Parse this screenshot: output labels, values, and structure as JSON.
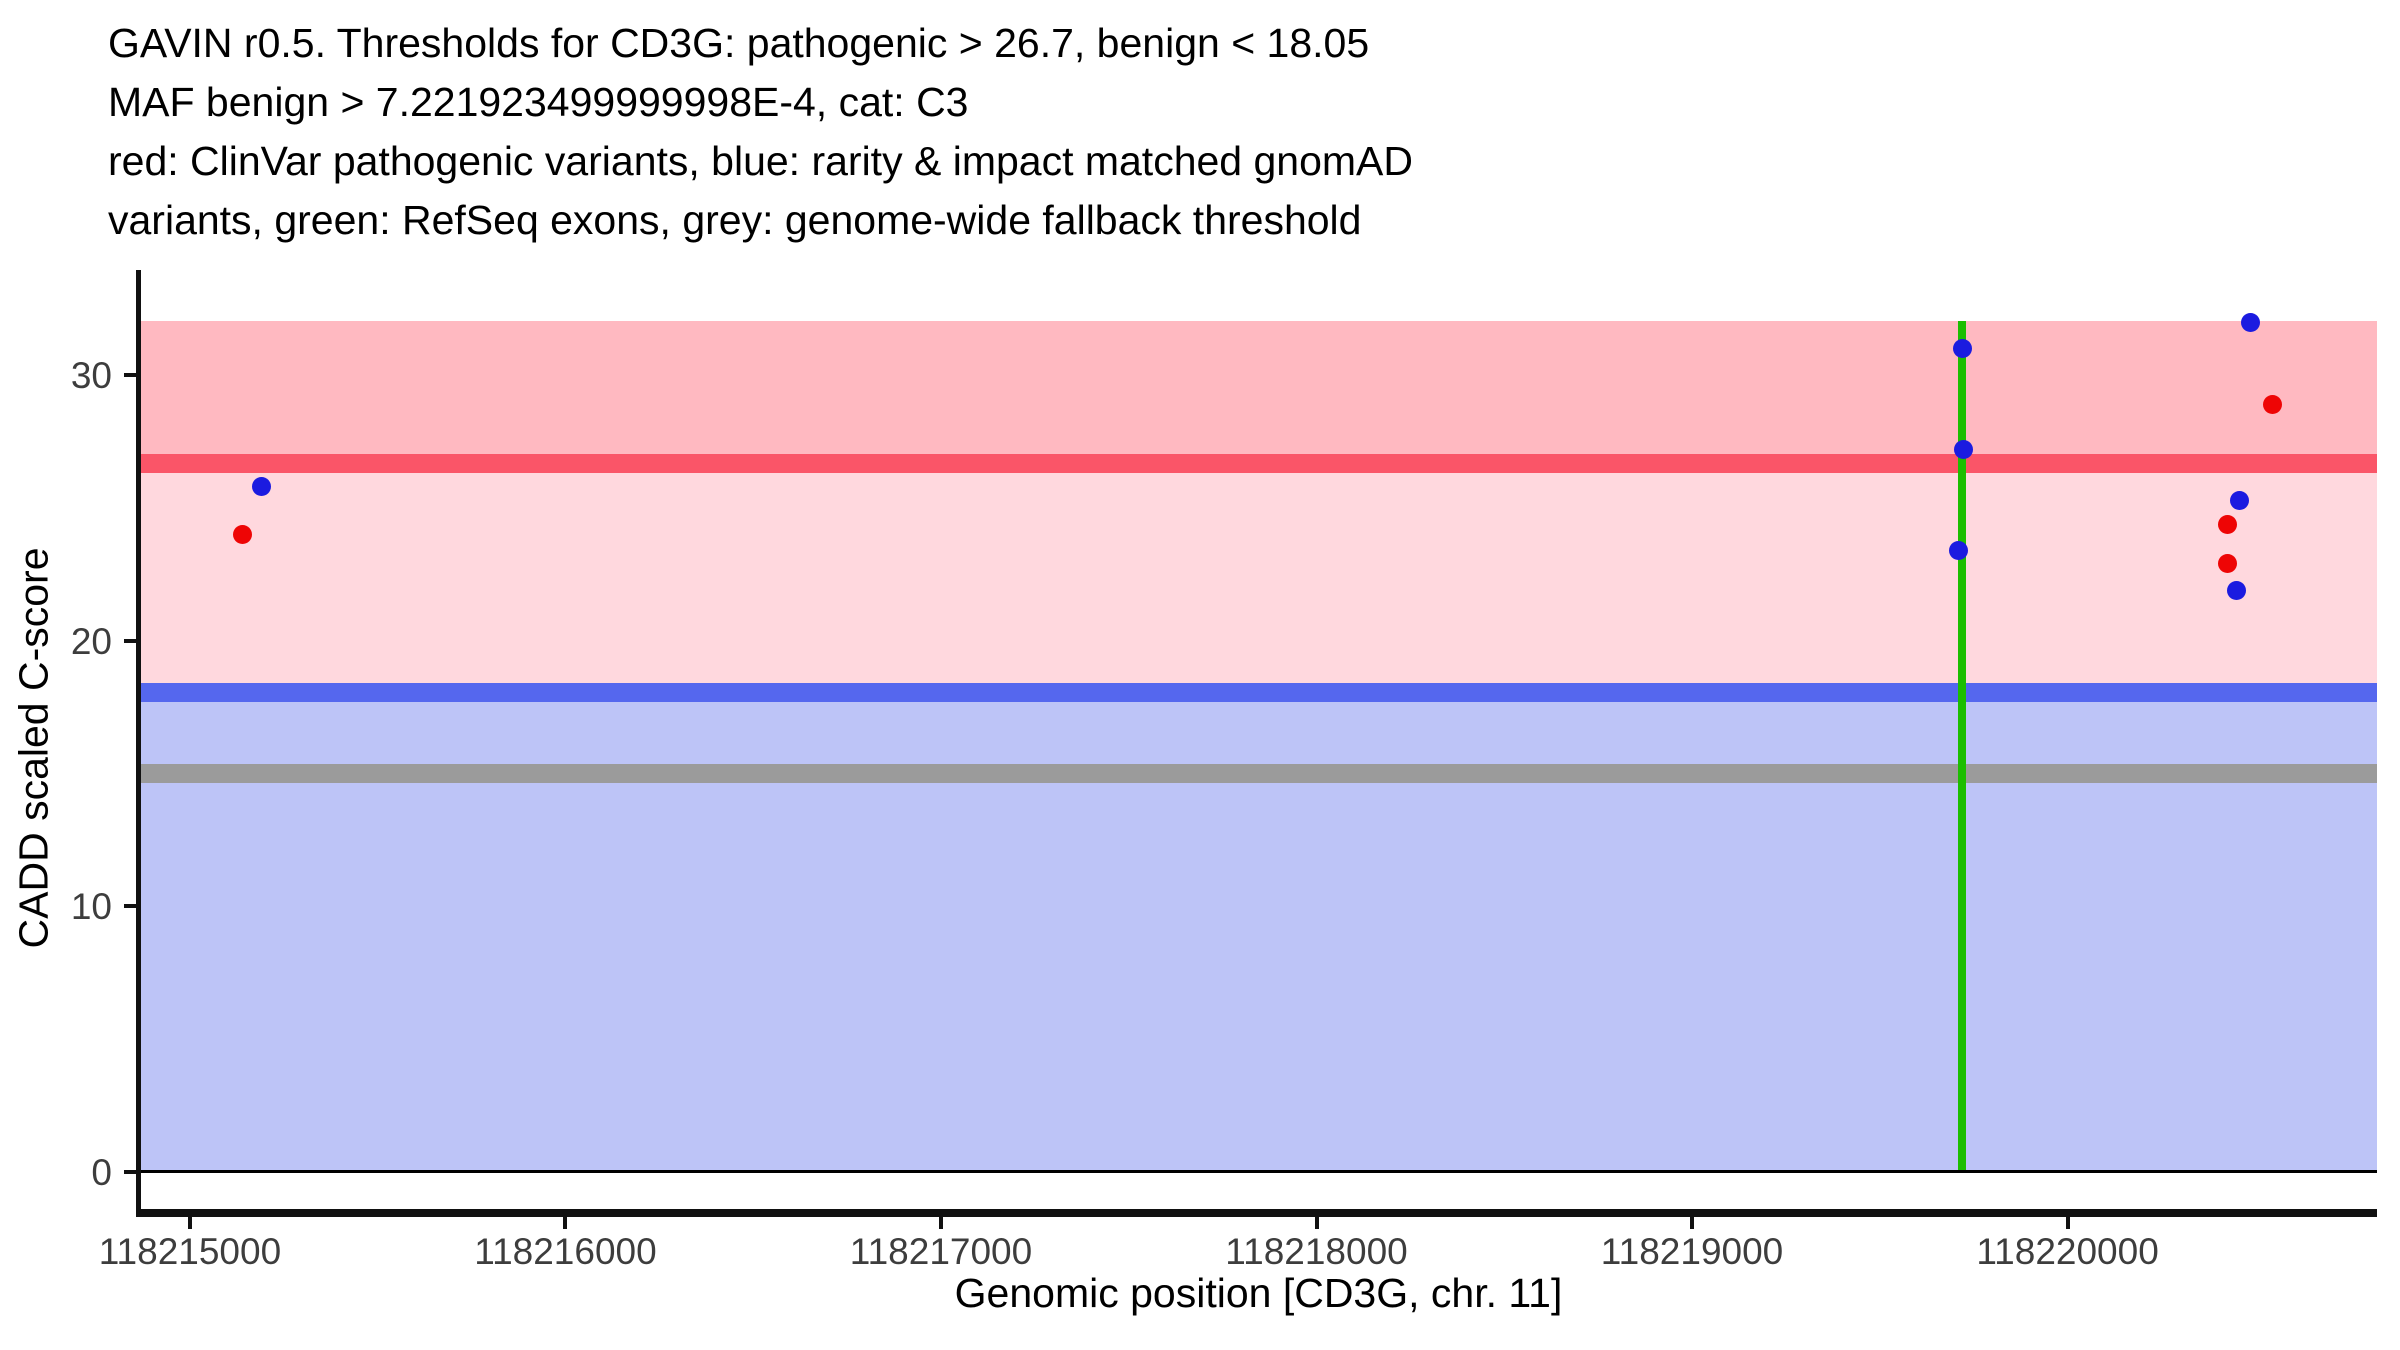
{
  "chart_data": {
    "type": "scatter",
    "title_lines": [
      "GAVIN r0.5. Thresholds for CD3G: pathogenic > 26.7, benign < 18.05",
      "MAF benign > 7.221923499999998E-4, cat: C3",
      "red: ClinVar pathogenic variants, blue: rarity & impact matched gnomAD",
      "variants, green: RefSeq exons, grey: genome-wide fallback threshold"
    ],
    "xlabel": "Genomic position [CD3G, chr. 11]",
    "ylabel": "CADD scaled C-score",
    "xlim": [
      118214867,
      118220824
    ],
    "ylim": [
      0,
      32.05
    ],
    "x_ticks": [
      118215000,
      118216000,
      118217000,
      118218000,
      118219000,
      118220000
    ],
    "y_ticks": [
      0,
      10,
      20,
      30
    ],
    "grid": false,
    "legend_position": "none",
    "regions": [
      {
        "name": "pathogenic-region",
        "from": 26.7,
        "to": 32.05,
        "color": "#FFB9C1"
      },
      {
        "name": "vus-region",
        "from": 18.05,
        "to": 26.7,
        "color": "#FFD8DE"
      },
      {
        "name": "benign-region",
        "from": 0,
        "to": 18.05,
        "color": "#BDC4F7"
      }
    ],
    "thresholds": [
      {
        "name": "pathogenic-threshold",
        "value": 26.7,
        "color": "#FA5568"
      },
      {
        "name": "benign-threshold",
        "value": 18.05,
        "color": "#5567EE"
      },
      {
        "name": "genome-wide-fallback-threshold",
        "value": 15,
        "color": "#9B9B9B"
      }
    ],
    "exons": [
      {
        "name": "refseq-exon",
        "position": 118219720,
        "color": "#1CBE00"
      }
    ],
    "baseline": {
      "value": 0,
      "color": "#000000"
    },
    "series": [
      {
        "name": "ClinVar pathogenic variants",
        "color": "#EE0505",
        "points": [
          {
            "pos": 118215140,
            "score": 24.0
          },
          {
            "pos": 118220547,
            "score": 28.9
          },
          {
            "pos": 118220427,
            "score": 24.4
          },
          {
            "pos": 118220427,
            "score": 22.9
          }
        ]
      },
      {
        "name": "rarity & impact matched gnomAD variants",
        "color": "#1B1BE0",
        "points": [
          {
            "pos": 118215190,
            "score": 25.8
          },
          {
            "pos": 118219720,
            "score": 31.0
          },
          {
            "pos": 118219723,
            "score": 27.2
          },
          {
            "pos": 118219710,
            "score": 23.4
          },
          {
            "pos": 118220486,
            "score": 32.0
          },
          {
            "pos": 118220459,
            "score": 25.3
          },
          {
            "pos": 118220451,
            "score": 21.9
          }
        ]
      }
    ]
  }
}
